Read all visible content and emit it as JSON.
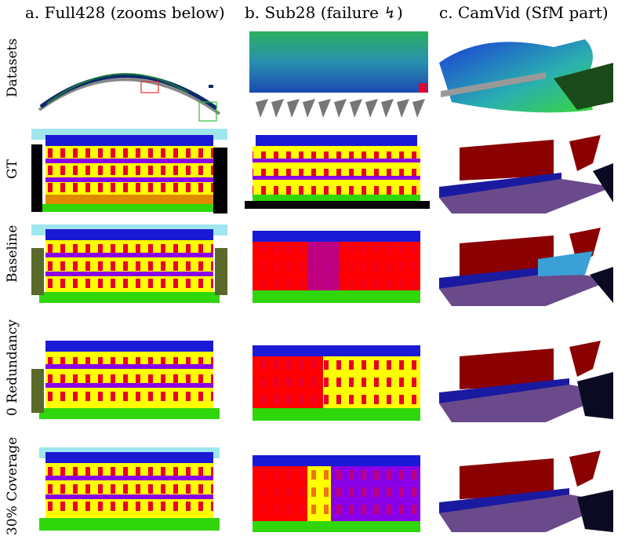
{
  "columns": [
    {
      "id": "a",
      "title": "a. Full428 (zooms below)"
    },
    {
      "id": "b",
      "title": "b. Sub28 (failure ↯)"
    },
    {
      "id": "c",
      "title": "c. CamVid (SfM part)"
    }
  ],
  "rows": [
    {
      "id": "datasets",
      "label": "Datasets"
    },
    {
      "id": "gt",
      "label": "GT"
    },
    {
      "id": "baseline",
      "label": "Baseline"
    },
    {
      "id": "zero-redundancy",
      "label": "0 Redundancy"
    },
    {
      "id": "coverage",
      "label": "30% Coverage"
    }
  ],
  "colors": {
    "sky": "#9fe6ef",
    "roof": "#1a1ad6",
    "wall": "#ffff00",
    "window": "#e8002a",
    "balcony": "#8a00e6",
    "shop": "#ff0000",
    "door": "#e08a00",
    "vegetation": "#2fd60a",
    "dark": "#0a0a22",
    "car": "#8b0000",
    "road": "#6a4a8a",
    "pavement": "#1a1aa0",
    "camvid-sky": "#3aa0d6",
    "building-grey": "#5a6a7a"
  }
}
